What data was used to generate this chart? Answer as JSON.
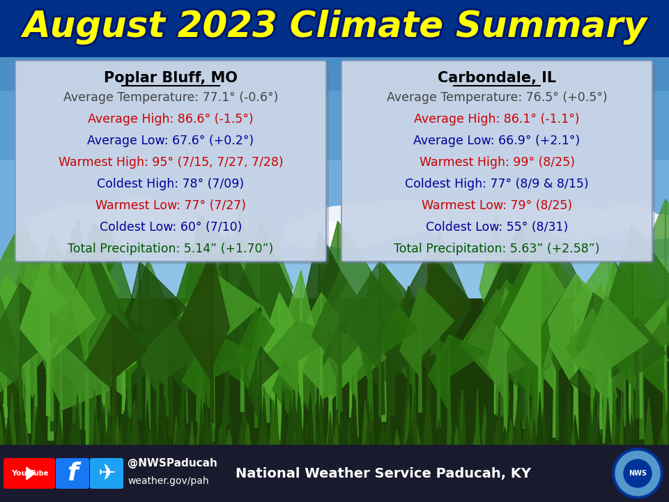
{
  "title": "August 2023 Climate Summary",
  "title_color": "#FFFF00",
  "header_bg": "#003087",
  "city1_name": "Poplar Bluff, MO",
  "city1_lines": [
    {
      "text": "Average Temperature: 77.1° (-0.6°)",
      "color": "#444444"
    },
    {
      "text": "Average High: 86.6° (-1.5°)",
      "color": "#cc0000"
    },
    {
      "text": "Average Low: 67.6° (+0.2°)",
      "color": "#000099"
    },
    {
      "text": "Warmest High: 95° (7/15, 7/27, 7/28)",
      "color": "#cc0000"
    },
    {
      "text": "Coldest High: 78° (7/09)",
      "color": "#000099"
    },
    {
      "text": "Warmest Low: 77° (7/27)",
      "color": "#cc0000"
    },
    {
      "text": "Coldest Low: 60° (7/10)",
      "color": "#000099"
    },
    {
      "text": "Total Precipitation: 5.14” (+1.70”)",
      "color": "#005500"
    }
  ],
  "city2_name": "Carbondale, IL",
  "city2_lines": [
    {
      "text": "Average Temperature: 76.5° (+0.5°)",
      "color": "#444444"
    },
    {
      "text": "Average High: 86.1° (-1.1°)",
      "color": "#cc0000"
    },
    {
      "text": "Average Low: 66.9° (+2.1°)",
      "color": "#000099"
    },
    {
      "text": "Warmest High: 99° (8/25)",
      "color": "#cc0000"
    },
    {
      "text": "Coldest High: 77° (8/9 & 8/15)",
      "color": "#000099"
    },
    {
      "text": "Warmest Low: 79° (8/25)",
      "color": "#cc0000"
    },
    {
      "text": "Coldest Low: 55° (8/31)",
      "color": "#000099"
    },
    {
      "text": "Total Precipitation: 5.63” (+2.58”)",
      "color": "#005500"
    }
  ],
  "footer_bg": "#1a1a2e",
  "footer_handle": "@NWSPaducah",
  "footer_url": "weather.gov/pah",
  "footer_nws": "National Weather Service Paducah, KY",
  "sky_top_color": "#6aabdc",
  "sky_bottom_color": "#a8d4f0",
  "grass_dark": "#1a4a0a",
  "grass_mid": "#2a6a10",
  "grass_bright": "#3a8a18"
}
